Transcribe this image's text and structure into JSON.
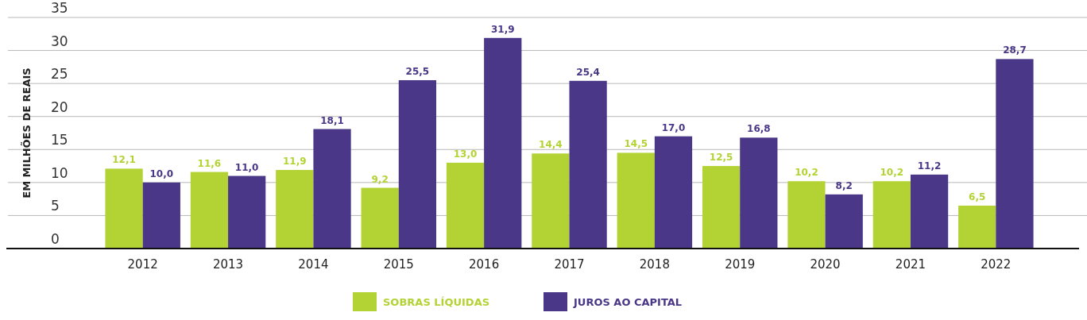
{
  "chart_data": {
    "type": "bar",
    "ylabel": "EM MILHÕES DE REAIS",
    "categories": [
      "2012",
      "2013",
      "2014",
      "2015",
      "2016",
      "2017",
      "2018",
      "2019",
      "2020",
      "2021",
      "2022"
    ],
    "series": [
      {
        "name": "SOBRAS LÍQUIDAS",
        "color": "#b3d335",
        "values": [
          12.1,
          11.6,
          11.9,
          9.2,
          13.0,
          14.4,
          14.5,
          12.5,
          10.2,
          10.2,
          6.5
        ],
        "value_labels": [
          "12,1",
          "11,6",
          "11,9",
          "9,2",
          "13,0",
          "14,4",
          "14,5",
          "12,5",
          "10,2",
          "10,2",
          "6,5"
        ]
      },
      {
        "name": "JUROS AO CAPITAL",
        "color": "#4a3787",
        "values": [
          10.0,
          11.0,
          18.1,
          25.5,
          31.9,
          25.4,
          17.0,
          16.8,
          8.2,
          11.2,
          28.7
        ],
        "value_labels": [
          "10,0",
          "11,0",
          "18,1",
          "25,5",
          "31,9",
          "25,4",
          "17,0",
          "16,8",
          "8,2",
          "11,2",
          "28,7"
        ]
      }
    ],
    "ylim": [
      0,
      35
    ],
    "yticks": [
      0,
      5,
      10,
      15,
      20,
      25,
      30,
      35
    ],
    "grid": "y",
    "legend": "bottom"
  }
}
